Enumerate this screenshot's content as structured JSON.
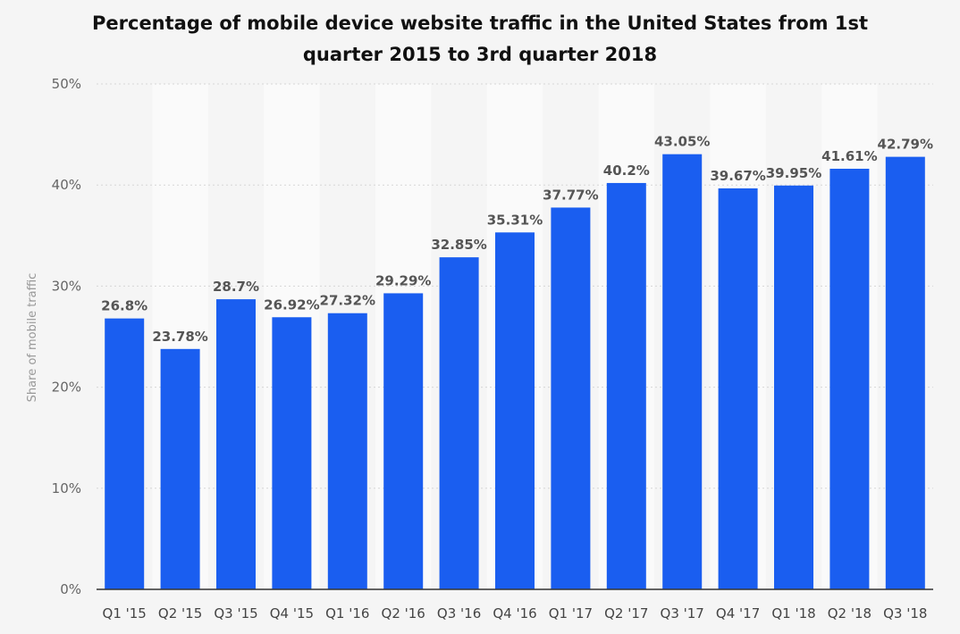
{
  "chart_data": {
    "type": "bar",
    "title_lines": [
      "Percentage of mobile device website traffic in the United States from 1st",
      "quarter 2015 to 3rd quarter 2018"
    ],
    "ylabel": "Share of mobile traffic",
    "xlabel": "",
    "ylim": [
      0,
      50
    ],
    "yticks": [
      {
        "value": 0,
        "label": "0%"
      },
      {
        "value": 10,
        "label": "10%"
      },
      {
        "value": 20,
        "label": "20%"
      },
      {
        "value": 30,
        "label": "30%"
      },
      {
        "value": 40,
        "label": "40%"
      },
      {
        "value": 50,
        "label": "50%"
      }
    ],
    "grid": true,
    "legend": "none",
    "bar_color": "#1a5ef0",
    "categories": [
      "Q1 '15",
      "Q2 '15",
      "Q3 '15",
      "Q4 '15",
      "Q1 '16",
      "Q2 '16",
      "Q3 '16",
      "Q4 '16",
      "Q1 '17",
      "Q2 '17",
      "Q3 '17",
      "Q4 '17",
      "Q1 '18",
      "Q2 '18",
      "Q3 '18"
    ],
    "values": [
      26.8,
      23.78,
      28.7,
      26.92,
      27.32,
      29.29,
      32.85,
      35.31,
      37.77,
      40.2,
      43.05,
      39.67,
      39.95,
      41.61,
      42.79
    ],
    "value_labels": [
      "26.8%",
      "23.78%",
      "28.7%",
      "26.92%",
      "27.32%",
      "29.29%",
      "32.85%",
      "35.31%",
      "37.77%",
      "40.2%",
      "43.05%",
      "39.67%",
      "39.95%",
      "41.61%",
      "42.79%"
    ]
  }
}
